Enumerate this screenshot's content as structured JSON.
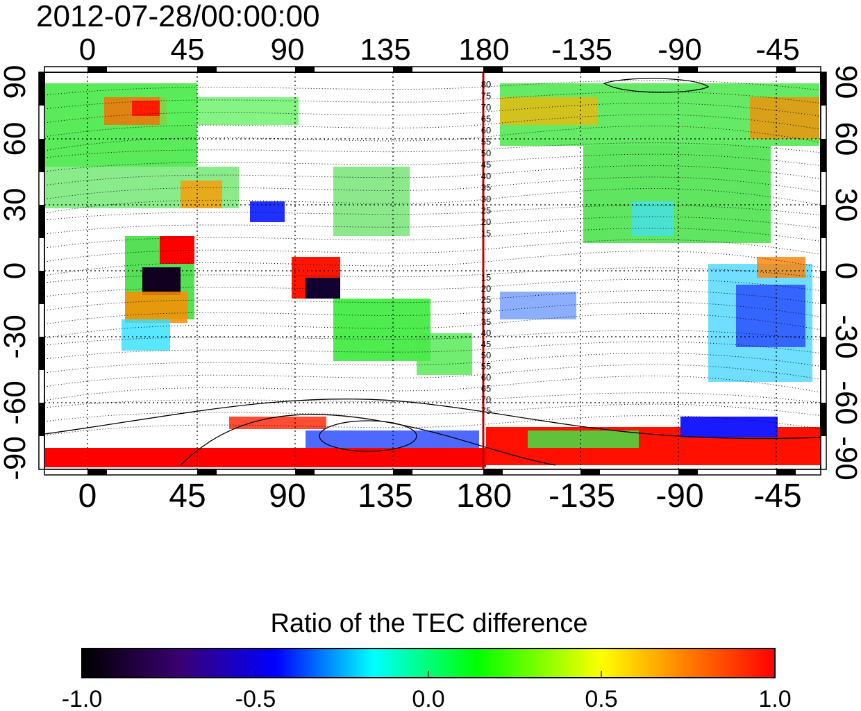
{
  "timestamp": "2012-07-28/00:00:00",
  "map": {
    "x_tick_labels": [
      "0",
      "45",
      "90",
      "135",
      "180",
      "-135",
      "-90",
      "-45"
    ],
    "y_tick_labels_left": [
      "90",
      "60",
      "30",
      "0",
      "-30",
      "-60",
      "-90"
    ],
    "y_tick_labels_right": [
      "90",
      "60",
      "30",
      "0",
      "-30",
      "-60",
      "-90"
    ],
    "contour_labels_north": [
      "80",
      "75",
      "70",
      "65",
      "60",
      "55",
      "50",
      "45",
      "40",
      "35",
      "30",
      "25",
      "20",
      "15"
    ],
    "contour_labels_south": [
      "15",
      "20",
      "25",
      "30",
      "35",
      "40",
      "45",
      "50",
      "55",
      "60",
      "65",
      "70",
      "75"
    ],
    "meridian_line_color": "#c00000"
  },
  "colorbar": {
    "title": "Ratio of the TEC difference",
    "tick_labels": [
      "-1.0",
      "-0.5",
      "0.0",
      "0.5",
      "1.0"
    ],
    "range": [
      -1.0,
      1.0
    ],
    "colors": [
      "#000000",
      "#3a0070",
      "#0000ff",
      "#00ffff",
      "#00ff00",
      "#ffff00",
      "#ff7f00",
      "#ff0000"
    ]
  }
}
